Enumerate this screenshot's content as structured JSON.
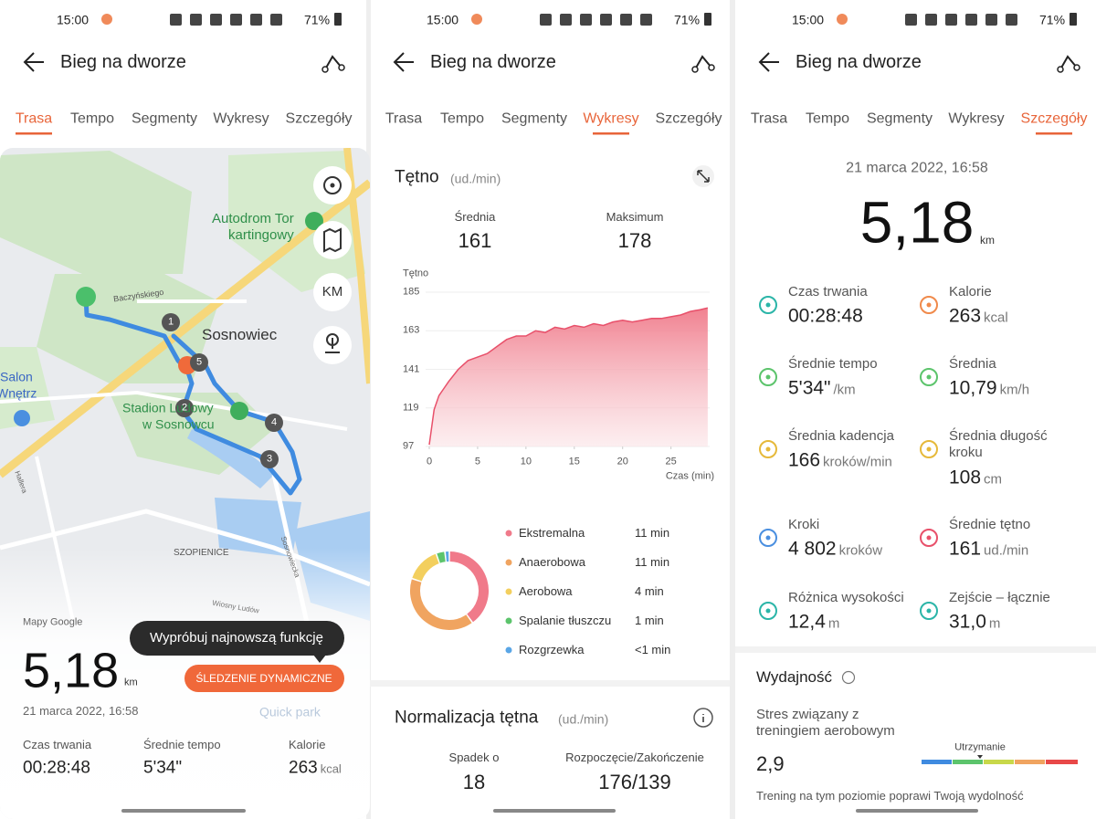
{
  "status_bar": {
    "time": "15:00",
    "battery": "71%"
  },
  "header": {
    "title": "Bieg na dworze"
  },
  "tabs": [
    "Trasa",
    "Tempo",
    "Segmenty",
    "Wykresy",
    "Szczegóły"
  ],
  "screens": [
    {
      "active_tab": 0
    },
    {
      "active_tab": 3
    },
    {
      "active_tab": 4
    }
  ],
  "route_screen": {
    "map": {
      "places": [
        "Autodrom Tor",
        "kartingowy",
        "Sosnowiec",
        "Salon",
        "Wnętrz",
        "Stadion Ludowy",
        "w Sosnowcu",
        "Baczyńskiego",
        "SZOPIENICE",
        "Sosnowiecka",
        "Hallera",
        "Wiosny Ludów",
        "Quick park"
      ],
      "markers": [
        "1",
        "2",
        "3",
        "4",
        "5"
      ],
      "unit_button": "KM",
      "attribution": "Mapy Google"
    },
    "tooltip": "Wypróbuj najnowszą funkcję",
    "button": "ŚLEDZENIE DYNAMICZNE",
    "distance": "5,18",
    "distance_unit": "km",
    "date": "21 marca 2022, 16:58",
    "stats": [
      {
        "label": "Czas trwania",
        "value": "00:28:48"
      },
      {
        "label": "Średnie tempo",
        "value": "5'34\""
      },
      {
        "label": "Kalorie",
        "value": "263",
        "unit": "kcal"
      }
    ]
  },
  "charts_screen": {
    "title": "Tętno",
    "unit": "(ud./min)",
    "summary": [
      {
        "label": "Średnia",
        "value": "161"
      },
      {
        "label": "Maksimum",
        "value": "178"
      }
    ],
    "heart_chart": {
      "type": "area",
      "y_label": "Tętno",
      "x_label": "Czas (min)",
      "color": "#e8506a",
      "x": [
        0,
        0.5,
        1,
        1.5,
        2,
        3,
        4,
        5,
        6,
        7,
        8,
        9,
        10,
        11,
        12,
        13,
        14,
        15,
        16,
        17,
        18,
        19,
        20,
        21,
        22,
        23,
        24,
        25,
        26,
        27,
        28,
        28.8
      ],
      "values": [
        98,
        118,
        126,
        130,
        134,
        141,
        146,
        148,
        150,
        154,
        158,
        160,
        160,
        163,
        162,
        165,
        164,
        166,
        165,
        167,
        166,
        168,
        169,
        168,
        169,
        170,
        170,
        171,
        172,
        174,
        175,
        176
      ],
      "xlim": [
        0,
        29
      ],
      "ylim": [
        97,
        185
      ],
      "xticks": [
        0,
        5,
        10,
        15,
        20,
        25
      ],
      "yticks": [
        97,
        119,
        141,
        163,
        185
      ]
    },
    "zones": {
      "type": "donut",
      "categories": [
        "Ekstremalna",
        "Anaerobowa",
        "Aerobowa",
        "Spalanie tłuszczu",
        "Rozgrzewka"
      ],
      "values": [
        11,
        11,
        4,
        1,
        0.5
      ],
      "value_labels": [
        "11 min",
        "11 min",
        "4 min",
        "1 min",
        "<1 min"
      ],
      "colors": [
        "#f07a8a",
        "#f0a460",
        "#f3cf5e",
        "#5cc46c",
        "#5aa6e6"
      ]
    },
    "normalization": {
      "title": "Normalizacja tętna",
      "unit": "(ud./min)",
      "items": [
        {
          "label": "Spadek o",
          "value": "18"
        },
        {
          "label": "Rozpoczęcie/Zakończenie",
          "value": "176/139"
        }
      ]
    }
  },
  "details_screen": {
    "date": "21 marca 2022, 16:58",
    "distance": "5,18",
    "distance_unit": "km",
    "metrics": [
      {
        "label": "Czas trwania",
        "value": "00:28:48",
        "color": "#2bb5a8"
      },
      {
        "label": "Kalorie",
        "value": "263",
        "unit": "kcal",
        "color": "#f08a4b"
      },
      {
        "label": "Średnie tempo",
        "value": "5'34\"",
        "unit": "/km",
        "color": "#5cc46c"
      },
      {
        "label": "Średnia",
        "value": "10,79",
        "unit": "km/h",
        "color": "#5cc46c"
      },
      {
        "label": "Średnia kadencja",
        "value": "166",
        "unit": "kroków/min",
        "color": "#e6b93a"
      },
      {
        "label": "Średnia długość kroku",
        "value": "108",
        "unit": "cm",
        "color": "#e6b93a"
      },
      {
        "label": "Kroki",
        "value": "4 802",
        "unit": "kroków",
        "color": "#4a8fe0"
      },
      {
        "label": "Średnie tętno",
        "value": "161",
        "unit": "ud./min",
        "color": "#e8506a"
      },
      {
        "label": "Różnica wysokości",
        "value": "12,4",
        "unit": "m",
        "color": "#2bb5a8"
      },
      {
        "label": "Zejście – łącznie",
        "value": "31,0",
        "unit": "m",
        "color": "#2bb5a8"
      }
    ],
    "efficiency": {
      "title": "Wydajność",
      "label": "Stres związany z treningiem aerobowym",
      "value": "2,9",
      "level": "Utrzymanie",
      "note": "Trening na tym poziomie poprawi Twoją wydolność"
    }
  }
}
